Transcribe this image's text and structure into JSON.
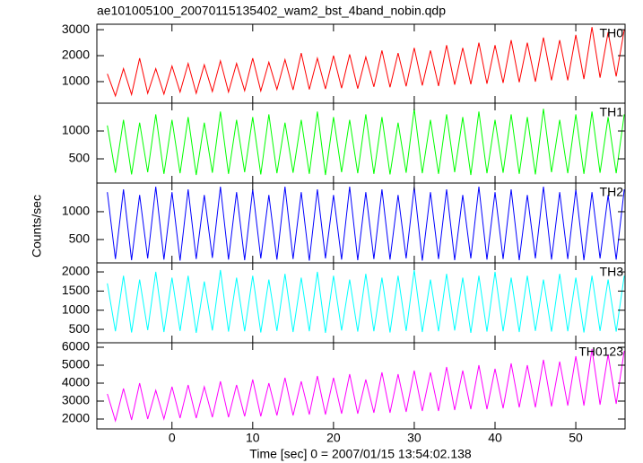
{
  "title": "ae101005100_20070115135402_wam2_bst_4band_nobin.qdp",
  "xlabel": "Time [sec] 0 = 2007/01/15 13:54:02.138",
  "ylabel": "Counts/sec",
  "xlim": [
    -9.3,
    56.1
  ],
  "xticks": [
    0,
    10,
    20,
    30,
    40,
    50
  ],
  "chart_data": [
    {
      "type": "line",
      "label": "TH0",
      "color": "#ff0000",
      "ylim": [
        170,
        3210
      ],
      "yticks": [
        1000,
        2000,
        3000
      ],
      "x": [
        -8,
        -7,
        -6,
        -5,
        -4,
        -3,
        -2,
        -1,
        0,
        1,
        2,
        3,
        4,
        5,
        6,
        7,
        8,
        9,
        10,
        11,
        12,
        13,
        14,
        15,
        16,
        17,
        18,
        19,
        20,
        21,
        22,
        23,
        24,
        25,
        26,
        27,
        28,
        29,
        30,
        31,
        32,
        33,
        34,
        35,
        36,
        37,
        38,
        39,
        40,
        41,
        42,
        43,
        44,
        45,
        46,
        47,
        48,
        49,
        50,
        51,
        52,
        53,
        54,
        55,
        56
      ],
      "values": [
        1300,
        450,
        1500,
        500,
        1900,
        550,
        1500,
        520,
        1600,
        600,
        1700,
        550,
        1650,
        620,
        1800,
        600,
        1700,
        650,
        1900,
        640,
        1750,
        700,
        1850,
        680,
        2100,
        700,
        1900,
        720,
        2000,
        750,
        2050,
        730,
        1950,
        800,
        2200,
        780,
        2100,
        820,
        2300,
        850,
        2200,
        830,
        2400,
        880,
        2300,
        900,
        2500,
        920,
        2400,
        950,
        2600,
        980,
        2500,
        1000,
        2700,
        1050,
        2600,
        1050,
        2800,
        1100,
        3100,
        1150,
        2900,
        1200,
        3000
      ]
    },
    {
      "type": "line",
      "label": "TH1",
      "color": "#00ff00",
      "ylim": [
        65,
        1500
      ],
      "yticks": [
        500,
        1000
      ],
      "x": [
        -8,
        -7,
        -6,
        -5,
        -4,
        -3,
        -2,
        -1,
        0,
        1,
        2,
        3,
        4,
        5,
        6,
        7,
        8,
        9,
        10,
        11,
        12,
        13,
        14,
        15,
        16,
        17,
        18,
        19,
        20,
        21,
        22,
        23,
        24,
        25,
        26,
        27,
        28,
        29,
        30,
        31,
        32,
        33,
        34,
        35,
        36,
        37,
        38,
        39,
        40,
        41,
        42,
        43,
        44,
        45,
        46,
        47,
        48,
        49,
        50,
        51,
        52,
        53,
        54,
        55,
        56
      ],
      "values": [
        1100,
        250,
        1200,
        220,
        1150,
        260,
        1300,
        230,
        1200,
        240,
        1250,
        210,
        1150,
        250,
        1350,
        230,
        1200,
        260,
        1250,
        220,
        1300,
        240,
        1150,
        250,
        1200,
        230,
        1350,
        210,
        1250,
        260,
        1200,
        240,
        1300,
        230,
        1250,
        220,
        1150,
        250,
        1400,
        240,
        1200,
        230,
        1300,
        260,
        1250,
        210,
        1350,
        240,
        1200,
        250,
        1300,
        230,
        1250,
        220,
        1400,
        260,
        1200,
        240,
        1300,
        230,
        1350,
        250,
        1250,
        240,
        1300
      ]
    },
    {
      "type": "line",
      "label": "TH2",
      "color": "#0000ff",
      "ylim": [
        80,
        1515
      ],
      "yticks": [
        500,
        1000
      ],
      "x": [
        -8,
        -7,
        -6,
        -5,
        -4,
        -3,
        -2,
        -1,
        0,
        1,
        2,
        3,
        4,
        5,
        6,
        7,
        8,
        9,
        10,
        11,
        12,
        13,
        14,
        15,
        16,
        17,
        18,
        19,
        20,
        21,
        22,
        23,
        24,
        25,
        26,
        27,
        28,
        29,
        30,
        31,
        32,
        33,
        34,
        35,
        36,
        37,
        38,
        39,
        40,
        41,
        42,
        43,
        44,
        45,
        46,
        47,
        48,
        49,
        50,
        51,
        52,
        53,
        54,
        55,
        56
      ],
      "values": [
        1350,
        150,
        1400,
        130,
        1300,
        160,
        1450,
        140,
        1350,
        120,
        1400,
        150,
        1300,
        170,
        1450,
        140,
        1350,
        130,
        1400,
        160,
        1300,
        140,
        1450,
        150,
        1350,
        120,
        1400,
        160,
        1300,
        140,
        1450,
        130,
        1350,
        150,
        1400,
        140,
        1300,
        160,
        1450,
        120,
        1350,
        150,
        1400,
        130,
        1300,
        160,
        1450,
        140,
        1350,
        150,
        1400,
        130,
        1300,
        160,
        1450,
        140,
        1350,
        150,
        1400,
        130,
        1350,
        160,
        1300,
        140,
        1400
      ]
    },
    {
      "type": "line",
      "label": "TH3",
      "color": "#00ffff",
      "ylim": [
        150,
        2235
      ],
      "yticks": [
        500,
        1000,
        1500,
        2000
      ],
      "x": [
        -8,
        -7,
        -6,
        -5,
        -4,
        -3,
        -2,
        -1,
        0,
        1,
        2,
        3,
        4,
        5,
        6,
        7,
        8,
        9,
        10,
        11,
        12,
        13,
        14,
        15,
        16,
        17,
        18,
        19,
        20,
        21,
        22,
        23,
        24,
        25,
        26,
        27,
        28,
        29,
        30,
        31,
        32,
        33,
        34,
        35,
        36,
        37,
        38,
        39,
        40,
        41,
        42,
        43,
        44,
        45,
        46,
        47,
        48,
        49,
        50,
        51,
        52,
        53,
        54,
        55,
        56
      ],
      "values": [
        1700,
        450,
        1900,
        420,
        1800,
        480,
        2000,
        430,
        1850,
        460,
        1900,
        410,
        1750,
        470,
        2050,
        440,
        1850,
        450,
        1900,
        420,
        1800,
        460,
        1950,
        430,
        1850,
        450,
        2000,
        410,
        1900,
        470,
        1800,
        440,
        1950,
        450,
        1850,
        420,
        1900,
        460,
        2050,
        430,
        1800,
        450,
        1950,
        470,
        1850,
        410,
        1900,
        440,
        2000,
        450,
        1850,
        430,
        1900,
        460,
        1800,
        440,
        1950,
        450,
        1850,
        420,
        1900,
        460,
        1800,
        440,
        1900
      ]
    },
    {
      "type": "line",
      "label": "TH0123",
      "color": "#ff00ff",
      "ylim": [
        1450,
        6250
      ],
      "yticks": [
        2000,
        3000,
        4000,
        5000,
        6000
      ],
      "x": [
        -8,
        -7,
        -6,
        -5,
        -4,
        -3,
        -2,
        -1,
        0,
        1,
        2,
        3,
        4,
        5,
        6,
        7,
        8,
        9,
        10,
        11,
        12,
        13,
        14,
        15,
        16,
        17,
        18,
        19,
        20,
        21,
        22,
        23,
        24,
        25,
        26,
        27,
        28,
        29,
        30,
        31,
        32,
        33,
        34,
        35,
        36,
        37,
        38,
        39,
        40,
        41,
        42,
        43,
        44,
        45,
        46,
        47,
        48,
        49,
        50,
        51,
        52,
        53,
        54,
        55,
        56
      ],
      "values": [
        3400,
        1900,
        3700,
        1950,
        4000,
        2000,
        3600,
        2000,
        3800,
        2050,
        3900,
        2050,
        3800,
        2100,
        4100,
        2100,
        3900,
        2150,
        4200,
        2150,
        4000,
        2200,
        4300,
        2200,
        4100,
        2250,
        4400,
        2250,
        4300,
        2300,
        4500,
        2300,
        4200,
        2350,
        4600,
        2350,
        4500,
        2400,
        4700,
        2450,
        4600,
        2450,
        4900,
        2500,
        4700,
        2550,
        5000,
        2550,
        4800,
        2600,
        5100,
        2650,
        5000,
        2650,
        5300,
        2700,
        5200,
        2750,
        5500,
        2750,
        5900,
        2800,
        5600,
        2850,
        5800
      ]
    }
  ]
}
